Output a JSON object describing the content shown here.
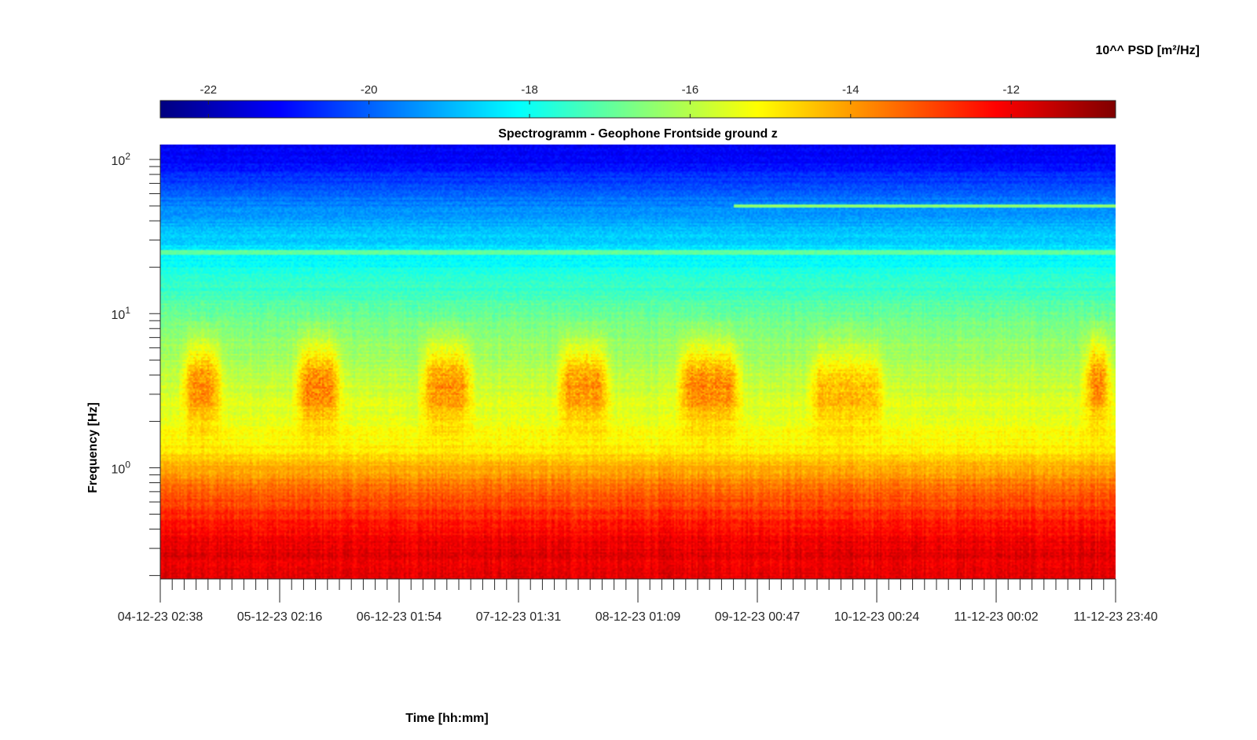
{
  "chart_data": {
    "type": "heatmap",
    "title": "Spectrogramm - Geophone Frontside ground z",
    "xlabel": "Time [hh:mm]",
    "ylabel": "Frequency [Hz]",
    "colorbar_label": "10^^ PSD [m²/Hz]",
    "colormap": "jet",
    "colorbar_ticks": [
      "-22",
      "-20",
      "-18",
      "-16",
      "-14",
      "-12"
    ],
    "colorbar_tick_values": [
      -22,
      -20,
      -18,
      -16,
      -14,
      -12
    ],
    "colorbar_range": [
      -22.6,
      -10.7
    ],
    "y_scale": "log",
    "y_range_hz": [
      0.19,
      125
    ],
    "y_tick_mantissa": "10",
    "y_tick_exponents": [
      "0",
      "1",
      "2"
    ],
    "x_tick_labels": [
      "04-12-23 02:38",
      "05-12-23 02:16",
      "06-12-23 01:54",
      "07-12-23 01:31",
      "08-12-23 01:09",
      "09-12-23 00:47",
      "10-12-23 00:24",
      "11-12-23 00:02",
      "11-12-23 23:40"
    ],
    "x_range_days": [
      0,
      8
    ],
    "minor_ticks_per_major": 10,
    "spectral_bands": [
      {
        "freq_from_hz": 0.19,
        "freq_to_hz": 0.5,
        "log10_psd": -11.9
      },
      {
        "freq_from_hz": 0.5,
        "freq_to_hz": 0.9,
        "log10_psd": -13.2
      },
      {
        "freq_from_hz": 0.9,
        "freq_to_hz": 2,
        "log10_psd": -15.0
      },
      {
        "freq_from_hz": 2,
        "freq_to_hz": 6,
        "log10_psd": -15.8
      },
      {
        "freq_from_hz": 6,
        "freq_to_hz": 15,
        "log10_psd": -16.8
      },
      {
        "freq_from_hz": 15,
        "freq_to_hz": 40,
        "log10_psd": -18.3
      },
      {
        "freq_from_hz": 40,
        "freq_to_hz": 80,
        "log10_psd": -19.8
      },
      {
        "freq_from_hz": 80,
        "freq_to_hz": 125,
        "log10_psd": -21.2
      }
    ],
    "daily_activity_bursts": [
      {
        "start_day": 0.15,
        "end_day": 0.55,
        "freq_center_hz": 3.3,
        "log10_psd": -13.7
      },
      {
        "start_day": 1.1,
        "end_day": 1.55,
        "freq_center_hz": 3.3,
        "log10_psd": -13.6
      },
      {
        "start_day": 2.15,
        "end_day": 2.65,
        "freq_center_hz": 3.3,
        "log10_psd": -13.8
      },
      {
        "start_day": 3.3,
        "end_day": 3.8,
        "freq_center_hz": 3.3,
        "log10_psd": -13.8
      },
      {
        "start_day": 4.3,
        "end_day": 4.9,
        "freq_center_hz": 3.3,
        "log10_psd": -13.7
      },
      {
        "start_day": 5.4,
        "end_day": 6.1,
        "freq_center_hz": 3.0,
        "log10_psd": -14.3
      },
      {
        "start_day": 7.7,
        "end_day": 8.0,
        "freq_center_hz": 3.5,
        "log10_psd": -13.6
      }
    ],
    "narrowband_lines": [
      {
        "freq_hz": 1.0,
        "start_day": 0.2,
        "end_day": 5.6,
        "log10_psd": -14.2
      },
      {
        "freq_hz": 1.0,
        "start_day": 7.7,
        "end_day": 8.0,
        "log10_psd": -14.2
      },
      {
        "freq_hz": 50,
        "start_day": 4.8,
        "end_day": 8.0,
        "log10_psd": -16.5
      },
      {
        "freq_hz": 25,
        "start_day": 0.0,
        "end_day": 8.0,
        "log10_psd": -17.0
      }
    ]
  }
}
